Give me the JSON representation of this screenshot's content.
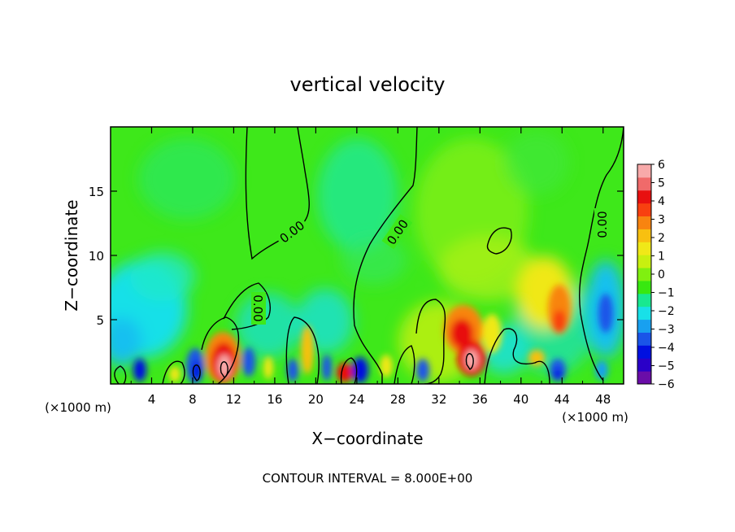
{
  "chart_data": {
    "type": "heatmap",
    "title": "vertical velocity",
    "xlabel": "X−coordinate",
    "ylabel": "Z−coordinate",
    "x_unit_left": "(×1000 m)",
    "x_unit_right": "(×1000 m)",
    "xlim": [
      0,
      50
    ],
    "ylim": [
      0,
      20
    ],
    "x_ticks": [
      4,
      8,
      12,
      16,
      20,
      24,
      28,
      32,
      36,
      40,
      44,
      48
    ],
    "y_ticks": [
      5,
      10,
      15
    ],
    "contour_interval_label": "CONTOUR INTERVAL = 8.000E+00",
    "contour_labels": [
      "0.00",
      "0.00",
      "0.00",
      "0.00"
    ],
    "colorbar": {
      "min": -6,
      "max": 6,
      "tick_labels": [
        "6",
        "5",
        "4",
        "3",
        "2",
        "1",
        "0",
        "−1",
        "−2",
        "−3",
        "−4",
        "−5",
        "−6"
      ],
      "colors": [
        "#6a0da8",
        "#2a00c8",
        "#0010e0",
        "#1a55e8",
        "#18a0f0",
        "#18e0e8",
        "#18e890",
        "#38e810",
        "#80f010",
        "#c8f010",
        "#f0e818",
        "#f8c010",
        "#f88410",
        "#f84010",
        "#e81010",
        "#f06a6a",
        "#f8aaaa"
      ]
    },
    "features": [
      {
        "x": 8.5,
        "z": 1.2,
        "value": -6
      },
      {
        "x": 11.0,
        "z": 1.6,
        "value": 6
      },
      {
        "x": 24.2,
        "z": 0.9,
        "value": -5
      },
      {
        "x": 34.0,
        "z": 3.8,
        "value": 4
      },
      {
        "x": 35.5,
        "z": 2.0,
        "value": 5
      },
      {
        "x": 43.5,
        "z": 5.5,
        "value": 3
      },
      {
        "x": 48.0,
        "z": 5.5,
        "value": -3
      },
      {
        "x": 1.0,
        "z": 5.0,
        "value": -2
      }
    ]
  }
}
